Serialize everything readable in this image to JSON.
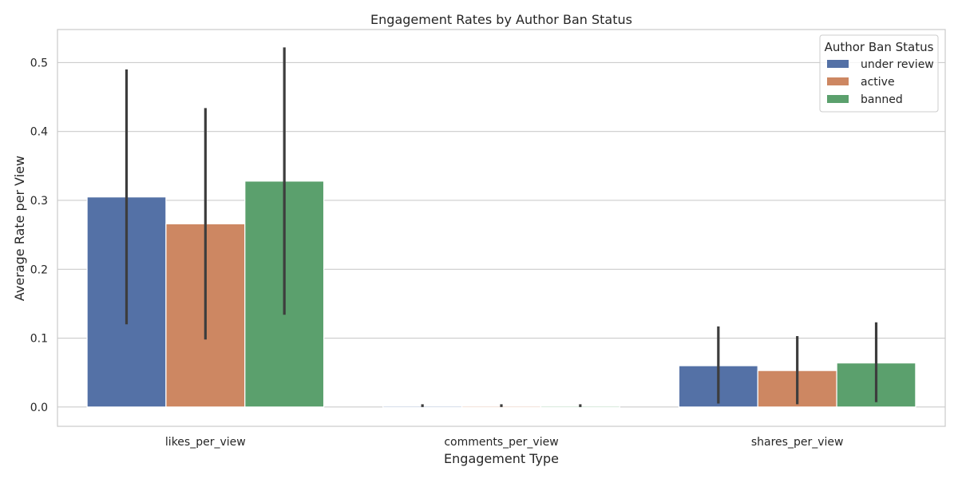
{
  "chart_data": {
    "type": "bar",
    "title": "Engagement Rates by Author Ban Status",
    "xlabel": "Engagement Type",
    "ylabel": "Average Rate per View",
    "categories": [
      "likes_per_view",
      "comments_per_view",
      "shares_per_view"
    ],
    "ylim": [
      -0.028,
      0.548
    ],
    "yticks": [
      0.0,
      0.1,
      0.2,
      0.3,
      0.4,
      0.5
    ],
    "ytick_labels": [
      "0.0",
      "0.1",
      "0.2",
      "0.3",
      "0.4",
      "0.5"
    ],
    "grid": true,
    "legend": {
      "title": "Author Ban Status",
      "placement": "top-right"
    },
    "series": [
      {
        "name": "under review",
        "color": "#5471a6",
        "values": [
          0.305,
          0.0008,
          0.06
        ],
        "error_low": [
          0.12,
          0.0,
          0.005
        ],
        "error_high": [
          0.49,
          0.004,
          0.117
        ]
      },
      {
        "name": "active",
        "color": "#cd8762",
        "values": [
          0.266,
          0.0008,
          0.053
        ],
        "error_low": [
          0.098,
          0.0,
          0.004
        ],
        "error_high": [
          0.434,
          0.004,
          0.103
        ]
      },
      {
        "name": "banned",
        "color": "#5ba06d",
        "values": [
          0.328,
          0.0008,
          0.064
        ],
        "error_low": [
          0.134,
          0.0,
          0.007
        ],
        "error_high": [
          0.522,
          0.004,
          0.123
        ]
      }
    ]
  }
}
